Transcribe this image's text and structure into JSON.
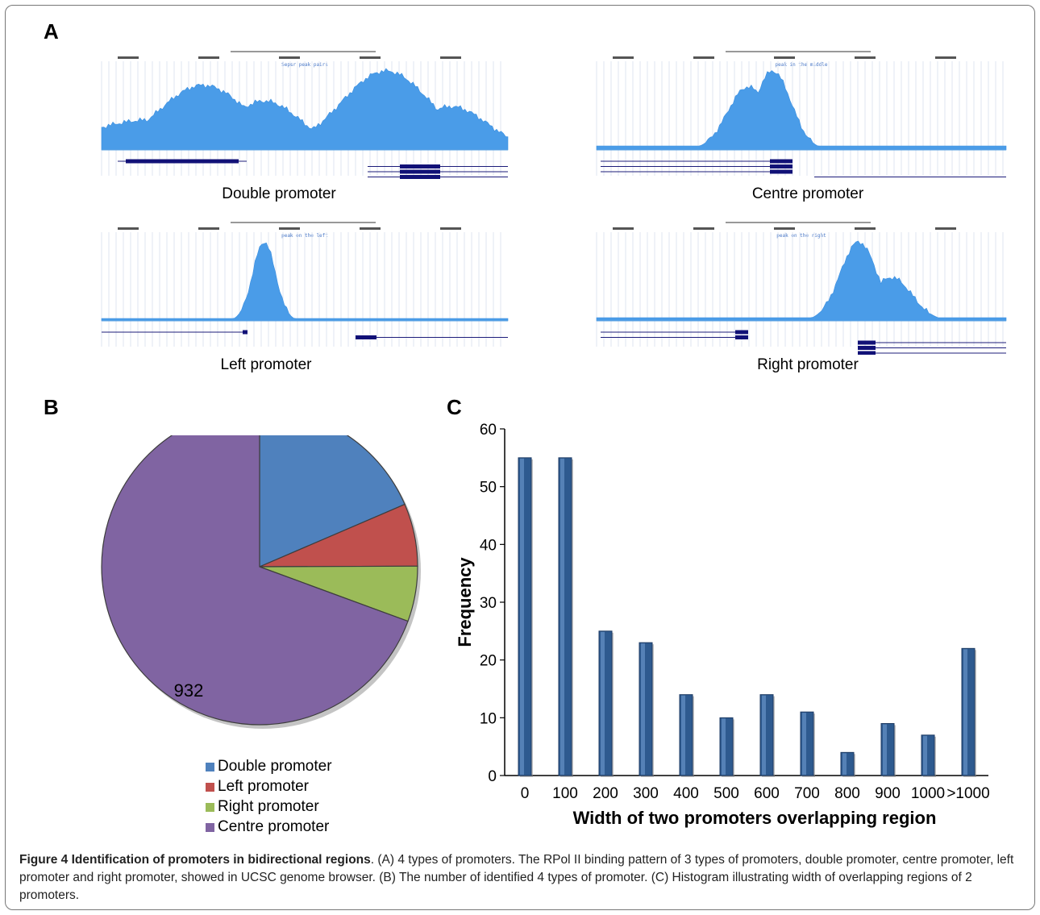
{
  "panel_labels": {
    "a": "A",
    "b": "B",
    "c": "C"
  },
  "tracks": [
    {
      "caption": "Double promoter",
      "peak_label": "Sepsr peak pairs",
      "shape": "double"
    },
    {
      "caption": "Centre promoter",
      "peak_label": "peak in the middle",
      "shape": "centre"
    },
    {
      "caption": "Left promoter",
      "peak_label": "peak on the left",
      "shape": "left"
    },
    {
      "caption": "Right promoter",
      "peak_label": "peak on the right",
      "shape": "right"
    }
  ],
  "chart_data": [
    {
      "type": "pie",
      "labels": [
        "Double promoter",
        "Left promoter",
        "Right promoter",
        "Centre promoter"
      ],
      "values": [
        249,
        86,
        76,
        932
      ],
      "colors": [
        "#4f81bd",
        "#c0504d",
        "#9bbb59",
        "#8064a2"
      ],
      "legend": "bottom"
    },
    {
      "type": "bar",
      "categories": [
        "0",
        "100",
        "200",
        "300",
        "400",
        "500",
        "600",
        "700",
        "800",
        "900",
        "1000",
        ">1000"
      ],
      "values": [
        55,
        55,
        25,
        23,
        14,
        10,
        14,
        11,
        4,
        9,
        7,
        22
      ],
      "xlabel": "Width of two promoters overlapping region",
      "ylabel": "Frequency",
      "ylim": [
        0,
        60
      ],
      "yticks": [
        0,
        10,
        20,
        30,
        40,
        50,
        60
      ],
      "color": "#2e5a8f"
    }
  ],
  "caption": {
    "bold": "Figure 4 Identification of promoters in bidirectional regions",
    "text": ". (A) 4 types of promoters. The RPol II binding pattern of 3 types of promoters, double promoter, centre promoter, left promoter and right promoter, showed in UCSC genome browser. (B) The number of identified 4 types of promoter. (C) Histogram illustrating width of overlapping regions of 2 promoters."
  }
}
